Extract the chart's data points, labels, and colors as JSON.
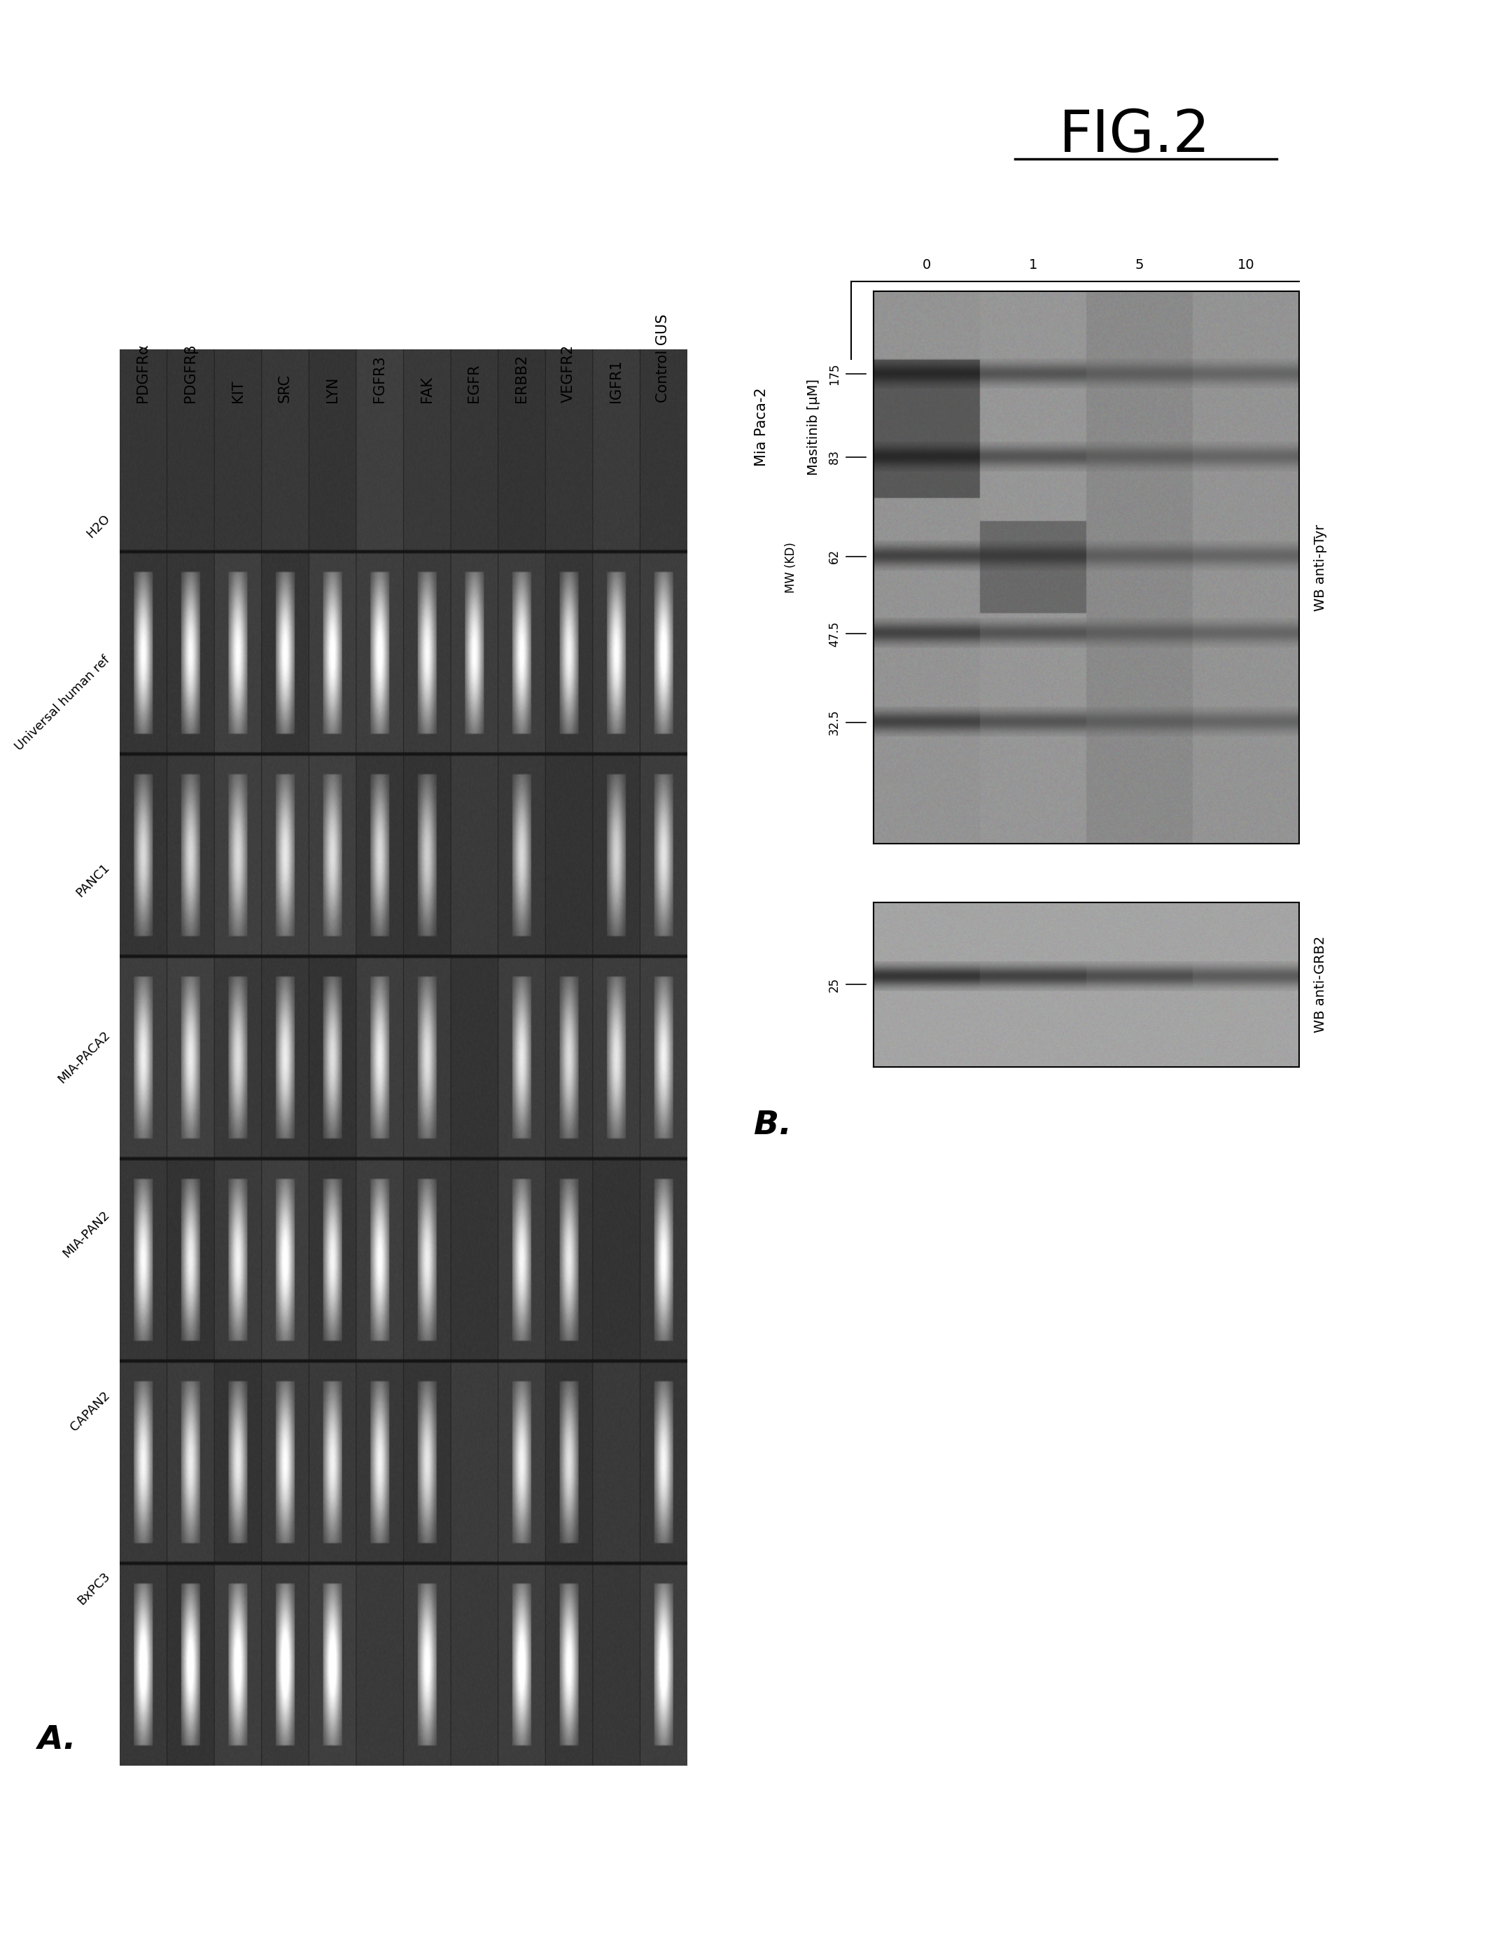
{
  "fig_label": "FIG.2",
  "panel_A_label": "A.",
  "panel_B_label": "B.",
  "panel_A": {
    "row_labels": [
      "BxPC3",
      "CAPAN2",
      "MIA-PAN2",
      "MIA-PACA2",
      "PANC1",
      "Universal human ref",
      "H2O"
    ],
    "col_labels": [
      "PDGFRα",
      "PDGFRβ",
      "KIT",
      "SRC",
      "LYN",
      "FGFR3",
      "FAK",
      "EGFR",
      "ERBB2",
      "VEGFR2",
      "IGFR1",
      "Control GUS"
    ],
    "band_patterns": [
      [
        1,
        1,
        1,
        1,
        1,
        0,
        1,
        0,
        1,
        1,
        0,
        1
      ],
      [
        1,
        1,
        1,
        1,
        1,
        1,
        1,
        0,
        1,
        1,
        0,
        1
      ],
      [
        1,
        1,
        1,
        1,
        1,
        1,
        1,
        0,
        1,
        1,
        0,
        1
      ],
      [
        1,
        1,
        1,
        1,
        1,
        1,
        1,
        0,
        1,
        1,
        1,
        1
      ],
      [
        1,
        1,
        1,
        1,
        1,
        1,
        1,
        0,
        1,
        0,
        1,
        1
      ],
      [
        1,
        1,
        1,
        1,
        1,
        1,
        1,
        1,
        1,
        1,
        1,
        1
      ],
      [
        0,
        0,
        0,
        0,
        0,
        0,
        0,
        0,
        0,
        0,
        0,
        0
      ]
    ],
    "band_brightness": [
      [
        0.9,
        0.88,
        0.85,
        0.92,
        0.87,
        0.0,
        0.8,
        0.0,
        0.85,
        0.82,
        0.0,
        0.88
      ],
      [
        0.75,
        0.7,
        0.72,
        0.78,
        0.73,
        0.74,
        0.7,
        0.0,
        0.72,
        0.68,
        0.0,
        0.76
      ],
      [
        0.78,
        0.75,
        0.73,
        0.8,
        0.76,
        0.77,
        0.72,
        0.0,
        0.74,
        0.71,
        0.0,
        0.79
      ],
      [
        0.7,
        0.68,
        0.65,
        0.72,
        0.68,
        0.7,
        0.65,
        0.0,
        0.68,
        0.64,
        0.67,
        0.71
      ],
      [
        0.65,
        0.63,
        0.61,
        0.67,
        0.63,
        0.65,
        0.61,
        0.0,
        0.63,
        0.0,
        0.62,
        0.66
      ],
      [
        0.8,
        0.78,
        0.76,
        0.82,
        0.79,
        0.8,
        0.76,
        0.77,
        0.78,
        0.75,
        0.77,
        0.81
      ],
      [
        0.0,
        0.0,
        0.0,
        0.0,
        0.0,
        0.0,
        0.0,
        0.0,
        0.0,
        0.0,
        0.0,
        0.0
      ]
    ]
  },
  "panel_B": {
    "cell_line": "Mia Paca-2",
    "drug_label": "Masitinib [μM]",
    "drug_concentrations": [
      "0",
      "1",
      "5",
      "10"
    ],
    "mw_labels_upper": [
      "175",
      "83",
      "62",
      "47.5",
      "32.5"
    ],
    "mw_label_lower": "25",
    "wb_label_upper": "WB anti-pTyr",
    "wb_label_lower": "WB anti-GRB2"
  },
  "background_color": "#ffffff",
  "font_color": "#000000"
}
